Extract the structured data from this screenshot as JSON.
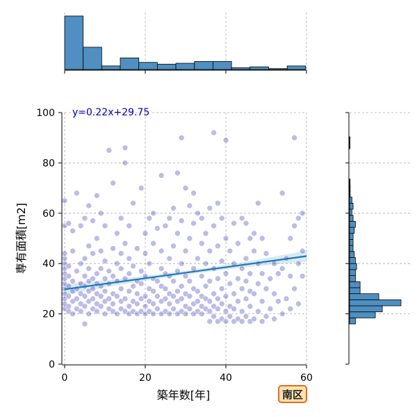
{
  "chart_data": {
    "type": "scatter",
    "title": "",
    "xlabel": "築年数[年]",
    "ylabel": "専有面積[m2]",
    "xlim": [
      0,
      60
    ],
    "ylim": [
      0,
      100
    ],
    "x_ticks": [
      0,
      20,
      40,
      60
    ],
    "y_ticks": [
      0,
      20,
      40,
      60,
      80,
      100
    ],
    "grid": true,
    "point_color": "#1010a8",
    "bar_color": "#4f8fc2",
    "line_color": "#1f77b4",
    "band_color": "#a6cee3",
    "regression": {
      "label": "y=0.22x+29.75",
      "slope": 0.22,
      "intercept": 29.75,
      "band_halfwidth_at_ends": 2.2,
      "band_halfwidth_at_center": 0.8
    },
    "series": [
      {
        "values": [
          [
            0,
            22
          ],
          [
            0,
            24
          ],
          [
            0,
            26
          ],
          [
            0,
            28
          ],
          [
            0,
            30
          ],
          [
            0,
            32
          ],
          [
            0,
            34
          ],
          [
            0,
            36
          ],
          [
            0,
            38
          ],
          [
            0,
            40
          ],
          [
            0,
            42
          ],
          [
            0,
            44
          ],
          [
            0,
            55
          ],
          [
            0,
            65
          ],
          [
            1,
            21
          ],
          [
            1,
            23
          ],
          [
            1,
            27
          ],
          [
            1,
            31
          ],
          [
            1,
            35
          ],
          [
            1,
            39
          ],
          [
            1,
            56
          ],
          [
            2,
            20
          ],
          [
            2,
            25
          ],
          [
            2,
            29
          ],
          [
            2,
            33
          ],
          [
            2,
            45
          ],
          [
            2,
            53
          ],
          [
            3,
            22
          ],
          [
            3,
            26
          ],
          [
            3,
            30
          ],
          [
            3,
            37
          ],
          [
            3,
            68
          ],
          [
            4,
            21
          ],
          [
            4,
            24
          ],
          [
            4,
            28
          ],
          [
            4,
            32
          ],
          [
            4,
            40
          ],
          [
            4,
            55
          ],
          [
            5,
            16
          ],
          [
            5,
            23
          ],
          [
            5,
            27
          ],
          [
            5,
            31
          ],
          [
            5,
            35
          ],
          [
            5,
            42
          ],
          [
            5,
            58
          ],
          [
            6,
            20
          ],
          [
            6,
            25
          ],
          [
            6,
            29
          ],
          [
            6,
            33
          ],
          [
            6,
            38
          ],
          [
            6,
            47
          ],
          [
            6,
            63
          ],
          [
            7,
            22
          ],
          [
            7,
            26
          ],
          [
            7,
            30
          ],
          [
            7,
            34
          ],
          [
            7,
            44
          ],
          [
            7,
            57
          ],
          [
            8,
            21
          ],
          [
            8,
            24
          ],
          [
            8,
            28
          ],
          [
            8,
            32
          ],
          [
            8,
            36
          ],
          [
            8,
            50
          ],
          [
            8,
            67
          ],
          [
            9,
            23
          ],
          [
            9,
            27
          ],
          [
            9,
            31
          ],
          [
            9,
            38
          ],
          [
            9,
            45
          ],
          [
            9,
            60
          ],
          [
            10,
            20
          ],
          [
            10,
            25
          ],
          [
            10,
            29
          ],
          [
            10,
            34
          ],
          [
            10,
            41
          ],
          [
            10,
            55
          ],
          [
            11,
            22
          ],
          [
            11,
            26
          ],
          [
            11,
            32
          ],
          [
            11,
            37
          ],
          [
            11,
            85
          ],
          [
            12,
            21
          ],
          [
            12,
            24
          ],
          [
            12,
            28
          ],
          [
            12,
            35
          ],
          [
            12,
            46
          ],
          [
            12,
            72
          ],
          [
            13,
            20
          ],
          [
            13,
            27
          ],
          [
            13,
            33
          ],
          [
            13,
            40
          ],
          [
            13,
            52
          ],
          [
            14,
            22
          ],
          [
            14,
            25
          ],
          [
            14,
            30
          ],
          [
            14,
            38
          ],
          [
            14,
            44
          ],
          [
            14,
            58
          ],
          [
            15,
            21
          ],
          [
            15,
            26
          ],
          [
            15,
            34
          ],
          [
            15,
            48
          ],
          [
            15,
            80
          ],
          [
            15,
            86
          ],
          [
            16,
            20
          ],
          [
            16,
            23
          ],
          [
            16,
            29
          ],
          [
            16,
            36
          ],
          [
            16,
            42
          ],
          [
            16,
            55
          ],
          [
            17,
            21
          ],
          [
            17,
            25
          ],
          [
            17,
            31
          ],
          [
            17,
            39
          ],
          [
            17,
            64
          ],
          [
            18,
            20
          ],
          [
            18,
            24
          ],
          [
            18,
            28
          ],
          [
            18,
            33
          ],
          [
            18,
            46
          ],
          [
            19,
            21
          ],
          [
            19,
            26
          ],
          [
            19,
            32
          ],
          [
            19,
            37
          ],
          [
            19,
            70
          ],
          [
            20,
            20
          ],
          [
            20,
            23
          ],
          [
            20,
            27
          ],
          [
            20,
            35
          ],
          [
            20,
            44
          ],
          [
            20,
            52
          ],
          [
            21,
            21
          ],
          [
            21,
            25
          ],
          [
            21,
            30
          ],
          [
            21,
            40
          ],
          [
            21,
            58
          ],
          [
            22,
            20
          ],
          [
            22,
            24
          ],
          [
            22,
            29
          ],
          [
            22,
            34
          ],
          [
            22,
            48
          ],
          [
            22,
            60
          ],
          [
            23,
            22
          ],
          [
            23,
            27
          ],
          [
            23,
            33
          ],
          [
            23,
            54
          ],
          [
            24,
            20
          ],
          [
            24,
            25
          ],
          [
            24,
            31
          ],
          [
            24,
            38
          ],
          [
            24,
            45
          ],
          [
            24,
            75
          ],
          [
            25,
            21
          ],
          [
            25,
            26
          ],
          [
            25,
            30
          ],
          [
            25,
            36
          ],
          [
            25,
            55
          ],
          [
            26,
            20
          ],
          [
            26,
            24
          ],
          [
            26,
            28
          ],
          [
            26,
            35
          ],
          [
            26,
            42
          ],
          [
            26,
            58
          ],
          [
            27,
            22
          ],
          [
            27,
            27
          ],
          [
            27,
            33
          ],
          [
            27,
            47
          ],
          [
            27,
            62
          ],
          [
            28,
            20
          ],
          [
            28,
            25
          ],
          [
            28,
            29
          ],
          [
            28,
            37
          ],
          [
            28,
            52
          ],
          [
            28,
            76
          ],
          [
            29,
            21
          ],
          [
            29,
            26
          ],
          [
            29,
            31
          ],
          [
            29,
            40
          ],
          [
            29,
            57
          ],
          [
            29,
            90
          ],
          [
            30,
            20
          ],
          [
            30,
            23
          ],
          [
            30,
            28
          ],
          [
            30,
            35
          ],
          [
            30,
            45
          ],
          [
            30,
            70
          ],
          [
            31,
            22
          ],
          [
            31,
            27
          ],
          [
            31,
            33
          ],
          [
            31,
            50
          ],
          [
            31,
            63
          ],
          [
            32,
            20
          ],
          [
            32,
            24
          ],
          [
            32,
            30
          ],
          [
            32,
            38
          ],
          [
            32,
            56
          ],
          [
            32,
            68
          ],
          [
            33,
            21
          ],
          [
            33,
            25
          ],
          [
            33,
            29
          ],
          [
            33,
            42
          ],
          [
            33,
            60
          ],
          [
            34,
            20
          ],
          [
            34,
            23
          ],
          [
            34,
            27
          ],
          [
            34,
            35
          ],
          [
            34,
            48
          ],
          [
            34,
            58
          ],
          [
            35,
            22
          ],
          [
            35,
            26
          ],
          [
            35,
            31
          ],
          [
            35,
            40
          ],
          [
            35,
            52
          ],
          [
            36,
            17
          ],
          [
            36,
            21
          ],
          [
            36,
            25
          ],
          [
            36,
            33
          ],
          [
            36,
            45
          ],
          [
            36,
            62
          ],
          [
            37,
            19
          ],
          [
            37,
            23
          ],
          [
            37,
            28
          ],
          [
            37,
            38
          ],
          [
            37,
            55
          ],
          [
            37,
            92
          ],
          [
            38,
            17
          ],
          [
            38,
            22
          ],
          [
            38,
            26
          ],
          [
            38,
            34
          ],
          [
            38,
            47
          ],
          [
            38,
            64
          ],
          [
            39,
            18
          ],
          [
            39,
            24
          ],
          [
            39,
            30
          ],
          [
            39,
            41
          ],
          [
            39,
            58
          ],
          [
            40,
            17
          ],
          [
            40,
            21
          ],
          [
            40,
            27
          ],
          [
            40,
            36
          ],
          [
            40,
            50
          ],
          [
            40,
            89
          ],
          [
            41,
            19
          ],
          [
            41,
            23
          ],
          [
            41,
            32
          ],
          [
            41,
            45
          ],
          [
            42,
            17
          ],
          [
            42,
            22
          ],
          [
            42,
            28
          ],
          [
            42,
            40
          ],
          [
            42,
            56
          ],
          [
            43,
            18
          ],
          [
            43,
            25
          ],
          [
            43,
            34
          ],
          [
            43,
            48
          ],
          [
            44,
            17
          ],
          [
            44,
            21
          ],
          [
            44,
            30
          ],
          [
            44,
            38
          ],
          [
            44,
            58
          ],
          [
            45,
            19
          ],
          [
            45,
            26
          ],
          [
            45,
            33
          ],
          [
            45,
            42
          ],
          [
            45,
            56
          ],
          [
            46,
            17
          ],
          [
            46,
            23
          ],
          [
            46,
            29
          ],
          [
            46,
            36
          ],
          [
            46,
            50
          ],
          [
            47,
            18
          ],
          [
            47,
            28
          ],
          [
            47,
            45
          ],
          [
            47,
            52
          ],
          [
            48,
            21
          ],
          [
            48,
            32
          ],
          [
            48,
            40
          ],
          [
            48,
            64
          ],
          [
            49,
            17
          ],
          [
            49,
            25
          ],
          [
            49,
            36
          ],
          [
            49,
            50
          ],
          [
            50,
            19
          ],
          [
            50,
            30
          ],
          [
            50,
            44
          ],
          [
            51,
            22
          ],
          [
            51,
            34
          ],
          [
            52,
            18
          ],
          [
            52,
            28
          ],
          [
            52,
            40
          ],
          [
            53,
            25
          ],
          [
            53,
            36
          ],
          [
            54,
            20
          ],
          [
            54,
            38
          ],
          [
            54,
            68
          ],
          [
            55,
            26
          ],
          [
            55,
            42
          ],
          [
            56,
            22
          ],
          [
            56,
            35
          ],
          [
            56,
            50
          ],
          [
            57,
            30
          ],
          [
            57,
            55
          ],
          [
            57,
            90
          ],
          [
            58,
            24
          ],
          [
            58,
            40
          ],
          [
            58,
            58
          ],
          [
            59,
            35
          ],
          [
            59,
            45
          ],
          [
            59,
            60
          ]
        ]
      }
    ],
    "marginal_x_histogram": {
      "bin_edges": [
        0,
        4.6,
        9.2,
        13.8,
        18.4,
        23.0,
        27.6,
        32.2,
        36.8,
        41.4,
        46.0,
        50.6,
        55.2,
        59.8
      ],
      "counts": [
        60,
        25,
        4,
        13,
        8,
        6,
        7,
        9,
        9,
        2,
        3,
        1,
        4
      ]
    },
    "marginal_y_histogram": {
      "bin_edges": [
        16,
        18.4,
        20.8,
        23.2,
        25.6,
        28,
        30.4,
        32.8,
        35.2,
        37.6,
        40,
        42.4,
        44.8,
        47.2,
        49.6,
        52,
        54.4,
        56.8,
        59.2,
        61.6,
        64,
        66.4,
        68.8,
        71.2,
        73.6,
        76,
        78.4,
        80.8,
        83.2,
        85.6,
        88,
        90.4
      ],
      "counts": [
        5,
        22,
        28,
        44,
        25,
        9,
        9,
        5,
        5,
        6,
        5,
        4,
        3,
        3,
        3,
        4,
        5,
        3,
        2,
        3,
        2,
        0.5,
        0.5,
        0.4,
        0,
        0,
        0,
        0,
        0,
        0.3,
        0.3
      ]
    },
    "region_label": "南区"
  }
}
